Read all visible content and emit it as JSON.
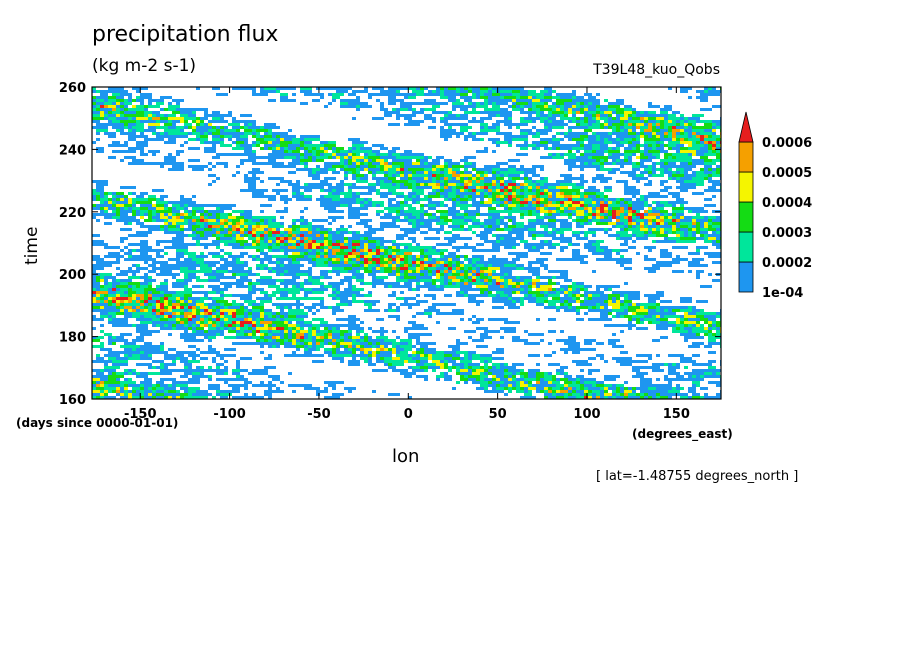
{
  "chart_data": {
    "type": "heatmap",
    "title": "precipitation flux",
    "units": "(kg m-2 s-1)",
    "run_label": "T39L48_kuo_Qobs",
    "xlabel": "lon",
    "x_units": "(degrees_east)",
    "ylabel": "time",
    "y_units": "(days since 0000-01-01)",
    "note": "[ lat=-1.48755 degrees_north ]",
    "xlim": [
      -177,
      175
    ],
    "ylim": [
      160,
      260
    ],
    "x_ticks": [
      -150,
      -100,
      -50,
      0,
      50,
      100,
      150
    ],
    "x_tick_labels": [
      "-150",
      "-100",
      "-50",
      "0",
      "50",
      "100",
      "150"
    ],
    "y_ticks": [
      160,
      180,
      200,
      220,
      240,
      260
    ],
    "y_tick_labels": [
      "160",
      "180",
      "200",
      "220",
      "240",
      "260"
    ],
    "colorbar": {
      "levels": [
        0.0001,
        0.0002,
        0.0003,
        0.0004,
        0.0005,
        0.0006
      ],
      "labels": [
        "1e-04",
        "0.0002",
        "0.0003",
        "0.0004",
        "0.0005",
        "0.0006"
      ],
      "colors": [
        "#1e96f0",
        "#00e69b",
        "#14dc14",
        "#f5f500",
        "#f5a000",
        "#e61e1e"
      ]
    }
  }
}
